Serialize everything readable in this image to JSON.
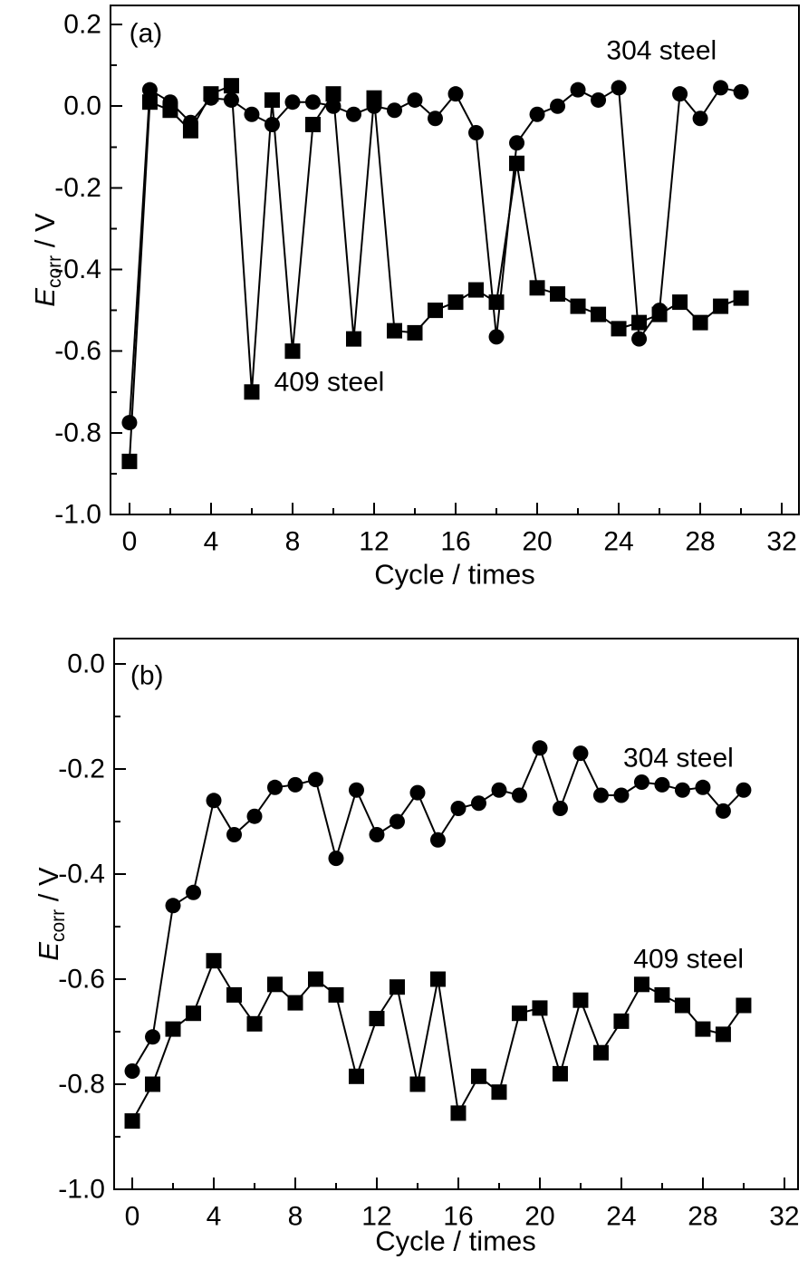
{
  "figure": {
    "background": "#ffffff",
    "ink_color": "#000000",
    "description": "Two stacked line charts of corrosion potential versus cycle number for 304 and 409 steel"
  },
  "chart_data": [
    {
      "panel": "a",
      "type": "line",
      "panel_label": "(a)",
      "xlabel": "Cycle / times",
      "ylabel": {
        "symbol": "E",
        "subscript": "corr",
        "suffix": " / V"
      },
      "xlim": [
        -0.93,
        32.84
      ],
      "ylim": [
        -1.0,
        0.2467
      ],
      "grid": false,
      "legend_position": "none",
      "xticks": {
        "major": [
          0,
          4,
          8,
          12,
          16,
          20,
          24,
          28,
          32
        ],
        "labels": [
          "0",
          "4",
          "8",
          "12",
          "16",
          "20",
          "24",
          "28",
          "32"
        ],
        "minor": [
          2,
          6,
          10,
          14,
          18,
          22,
          26,
          30
        ]
      },
      "yticks": {
        "major": [
          0.2,
          0.0,
          -0.2,
          -0.4,
          -0.6,
          -0.8,
          -1.0
        ],
        "labels": [
          "0.2",
          "0.0",
          "-0.2",
          "-0.4",
          "-0.6",
          "-0.8",
          "-1.0"
        ],
        "minor": [
          0.1,
          -0.1,
          -0.3,
          -0.5,
          -0.7,
          -0.9
        ]
      },
      "x": [
        0,
        1,
        2,
        3,
        4,
        5,
        6,
        7,
        8,
        9,
        10,
        11,
        12,
        13,
        14,
        15,
        16,
        17,
        18,
        19,
        20,
        21,
        22,
        23,
        24,
        25,
        26,
        27,
        28,
        29,
        30
      ],
      "series": [
        {
          "name": "304 steel",
          "marker": "circle",
          "color": "#000000",
          "values": [
            -0.775,
            0.04,
            0.01,
            -0.04,
            0.02,
            0.015,
            -0.02,
            -0.045,
            0.01,
            0.01,
            0.0,
            -0.02,
            0.0,
            -0.01,
            0.015,
            -0.03,
            0.03,
            -0.065,
            -0.565,
            -0.09,
            -0.02,
            0.0,
            0.04,
            0.015,
            0.045,
            -0.57,
            -0.5,
            0.03,
            -0.03,
            0.045,
            0.035
          ]
        },
        {
          "name": "409 steel",
          "marker": "square",
          "color": "#000000",
          "values": [
            -0.87,
            0.01,
            -0.01,
            -0.06,
            0.03,
            0.05,
            -0.7,
            0.015,
            -0.6,
            -0.045,
            0.03,
            -0.57,
            0.02,
            -0.55,
            -0.555,
            -0.5,
            -0.48,
            -0.45,
            -0.48,
            -0.14,
            -0.445,
            -0.46,
            -0.49,
            -0.51,
            -0.545,
            -0.53,
            -0.51,
            -0.48,
            -0.53,
            -0.49,
            -0.47
          ]
        }
      ],
      "annotations": [
        {
          "role": "panel-letter",
          "text": "(a)",
          "x": 0.8,
          "y": 0.178
        },
        {
          "role": "series-label",
          "text": "304 steel",
          "x": 26.1,
          "y": 0.136
        },
        {
          "role": "series-label",
          "text": "409 steel",
          "x": 9.8,
          "y": -0.676
        }
      ]
    },
    {
      "panel": "b",
      "type": "line",
      "panel_label": "(b)",
      "xlabel": "Cycle / times",
      "ylabel": {
        "symbol": "E",
        "subscript": "corr",
        "suffix": " / V"
      },
      "xlim": [
        -0.89,
        32.67
      ],
      "ylim": [
        -1.0,
        0.0483
      ],
      "grid": false,
      "legend_position": "none",
      "xticks": {
        "major": [
          0,
          4,
          8,
          12,
          16,
          20,
          24,
          28,
          32
        ],
        "labels": [
          "0",
          "4",
          "8",
          "12",
          "16",
          "20",
          "24",
          "28",
          "32"
        ],
        "minor": [
          2,
          6,
          10,
          14,
          18,
          22,
          26,
          30
        ]
      },
      "yticks": {
        "major": [
          0.0,
          -0.2,
          -0.4,
          -0.6,
          -0.8,
          -1.0
        ],
        "labels": [
          "0.0",
          "-0.2",
          "-0.4",
          "-0.6",
          "-0.8",
          "-1.0"
        ],
        "minor": [
          -0.1,
          -0.3,
          -0.5,
          -0.7,
          -0.9
        ]
      },
      "x": [
        0,
        1,
        2,
        3,
        4,
        5,
        6,
        7,
        8,
        9,
        10,
        11,
        12,
        13,
        14,
        15,
        16,
        17,
        18,
        19,
        20,
        21,
        22,
        23,
        24,
        25,
        26,
        27,
        28,
        29,
        30
      ],
      "series": [
        {
          "name": "304 steel",
          "marker": "circle",
          "color": "#000000",
          "values": [
            -0.775,
            -0.71,
            -0.46,
            -0.435,
            -0.26,
            -0.325,
            -0.29,
            -0.235,
            -0.23,
            -0.22,
            -0.37,
            -0.24,
            -0.325,
            -0.3,
            -0.245,
            -0.335,
            -0.275,
            -0.265,
            -0.24,
            -0.25,
            -0.16,
            -0.275,
            -0.17,
            -0.25,
            -0.25,
            -0.225,
            -0.23,
            -0.24,
            -0.235,
            -0.28,
            -0.24
          ]
        },
        {
          "name": "409 steel",
          "marker": "square",
          "color": "#000000",
          "values": [
            -0.87,
            -0.8,
            -0.695,
            -0.665,
            -0.565,
            -0.63,
            -0.685,
            -0.61,
            -0.645,
            -0.6,
            -0.63,
            -0.785,
            -0.675,
            -0.615,
            -0.8,
            -0.6,
            -0.855,
            -0.785,
            -0.815,
            -0.665,
            -0.655,
            -0.78,
            -0.64,
            -0.74,
            -0.68,
            -0.61,
            -0.63,
            -0.65,
            -0.695,
            -0.705,
            -0.65
          ]
        }
      ],
      "annotations": [
        {
          "role": "panel-letter",
          "text": "(b)",
          "x": 0.72,
          "y": -0.022
        },
        {
          "role": "series-label",
          "text": "304 steel",
          "x": 26.8,
          "y": -0.179
        },
        {
          "role": "series-label",
          "text": "409 steel",
          "x": 27.3,
          "y": -0.562
        }
      ]
    }
  ]
}
